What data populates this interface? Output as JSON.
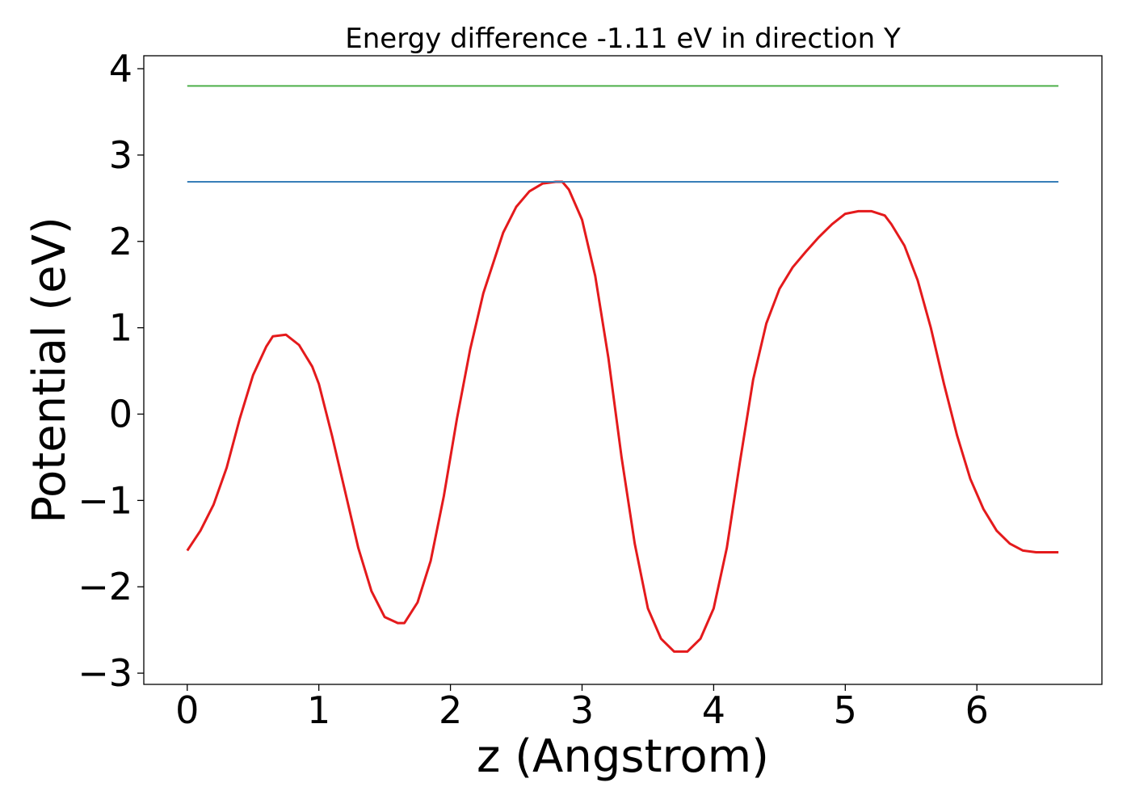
{
  "chart_data": {
    "type": "line",
    "title": "Energy difference -1.11 eV in direction Y",
    "xlabel": "z (Angstrom)",
    "ylabel": "Potential (eV)",
    "xlim": [
      -0.33,
      6.95
    ],
    "ylim": [
      -3.13,
      4.15
    ],
    "xticks": [
      0,
      1,
      2,
      3,
      4,
      5,
      6
    ],
    "xtick_labels": [
      "0",
      "1",
      "2",
      "3",
      "4",
      "5",
      "6"
    ],
    "yticks": [
      4,
      3,
      2,
      1,
      0,
      -1,
      -2,
      -3
    ],
    "ytick_labels": [
      "4",
      "3",
      "2",
      "1",
      "0",
      "−1",
      "−2",
      "−3"
    ],
    "grid": false,
    "legend": "none",
    "series": [
      {
        "color": "#e41a1c",
        "x": [
          0.0,
          0.1,
          0.2,
          0.3,
          0.4,
          0.5,
          0.6,
          0.65,
          0.75,
          0.85,
          0.95,
          1.0,
          1.1,
          1.2,
          1.3,
          1.4,
          1.5,
          1.6,
          1.65,
          1.75,
          1.85,
          1.95,
          2.05,
          2.15,
          2.25,
          2.4,
          2.5,
          2.6,
          2.7,
          2.8,
          2.85,
          2.9,
          3.0,
          3.1,
          3.2,
          3.3,
          3.4,
          3.5,
          3.6,
          3.7,
          3.8,
          3.9,
          4.0,
          4.1,
          4.2,
          4.3,
          4.4,
          4.5,
          4.6,
          4.7,
          4.8,
          4.9,
          5.0,
          5.1,
          5.2,
          5.3,
          5.35,
          5.45,
          5.55,
          5.65,
          5.75,
          5.85,
          5.95,
          6.05,
          6.15,
          6.25,
          6.35,
          6.45,
          6.55,
          6.62
        ],
        "y": [
          -1.58,
          -1.35,
          -1.05,
          -0.62,
          -0.05,
          0.45,
          0.78,
          0.9,
          0.92,
          0.8,
          0.55,
          0.35,
          -0.25,
          -0.9,
          -1.55,
          -2.05,
          -2.35,
          -2.42,
          -2.42,
          -2.18,
          -1.7,
          -0.95,
          -0.05,
          0.75,
          1.4,
          2.1,
          2.4,
          2.58,
          2.67,
          2.69,
          2.69,
          2.6,
          2.25,
          1.6,
          0.65,
          -0.5,
          -1.5,
          -2.25,
          -2.6,
          -2.75,
          -2.75,
          -2.6,
          -2.25,
          -1.55,
          -0.55,
          0.4,
          1.05,
          1.45,
          1.7,
          1.88,
          2.05,
          2.2,
          2.32,
          2.35,
          2.35,
          2.3,
          2.2,
          1.95,
          1.55,
          1.0,
          0.35,
          -0.25,
          -0.75,
          -1.1,
          -1.35,
          -1.5,
          -1.58,
          -1.6,
          -1.6,
          -1.6
        ]
      },
      {
        "color": "#377eb8",
        "x": [
          0.0,
          6.62
        ],
        "y": [
          2.69,
          2.69
        ]
      },
      {
        "color": "#4daf4a",
        "x": [
          0.0,
          6.62
        ],
        "y": [
          3.8,
          3.8
        ]
      }
    ]
  }
}
